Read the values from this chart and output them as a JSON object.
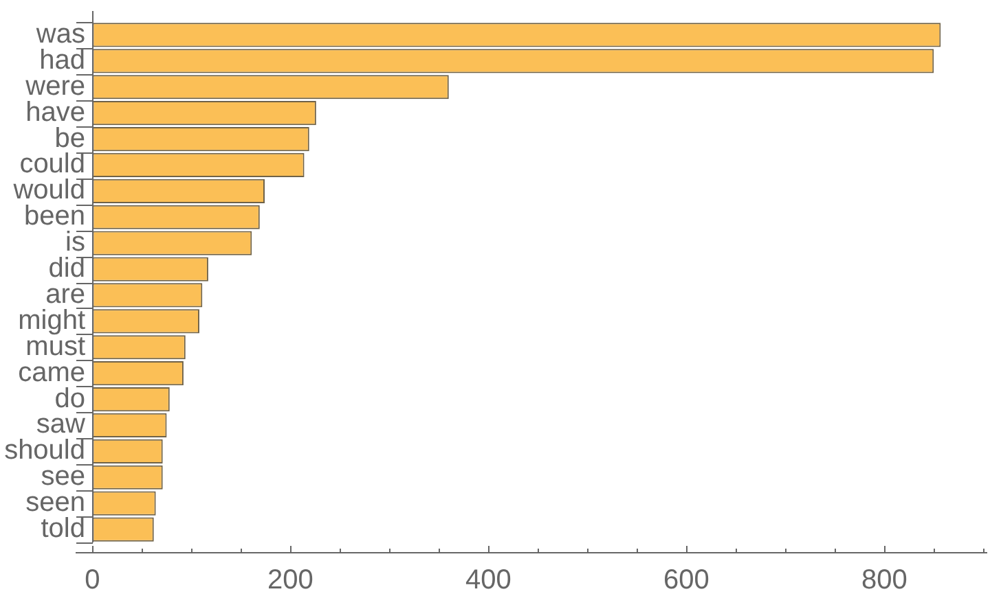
{
  "chart_data": {
    "type": "bar",
    "orientation": "horizontal",
    "categories": [
      "was",
      "had",
      "were",
      "have",
      "be",
      "could",
      "would",
      "been",
      "is",
      "did",
      "are",
      "might",
      "must",
      "came",
      "do",
      "saw",
      "should",
      "see",
      "seen",
      "told"
    ],
    "values": [
      857,
      850,
      360,
      226,
      219,
      214,
      174,
      169,
      161,
      117,
      111,
      108,
      94,
      92,
      78,
      75,
      71,
      71,
      64,
      62
    ],
    "color": "#fbbf56",
    "xlim": [
      -17,
      904
    ],
    "xticks": [
      0,
      {
        "value": 50,
        "label": null
      },
      {
        "value": 100,
        "label": null
      },
      {
        "value": 150,
        "label": null
      },
      200,
      {
        "value": 250,
        "label": null
      },
      {
        "value": 300,
        "label": null
      },
      {
        "value": 350,
        "label": null
      },
      400,
      {
        "value": 450,
        "label": null
      },
      {
        "value": 500,
        "label": null
      },
      {
        "value": 550,
        "label": null
      },
      600,
      {
        "value": 650,
        "label": null
      },
      {
        "value": 700,
        "label": null
      },
      {
        "value": 750,
        "label": null
      },
      800,
      {
        "value": 850,
        "label": null
      },
      {
        "value": 900,
        "label": null
      }
    ]
  }
}
